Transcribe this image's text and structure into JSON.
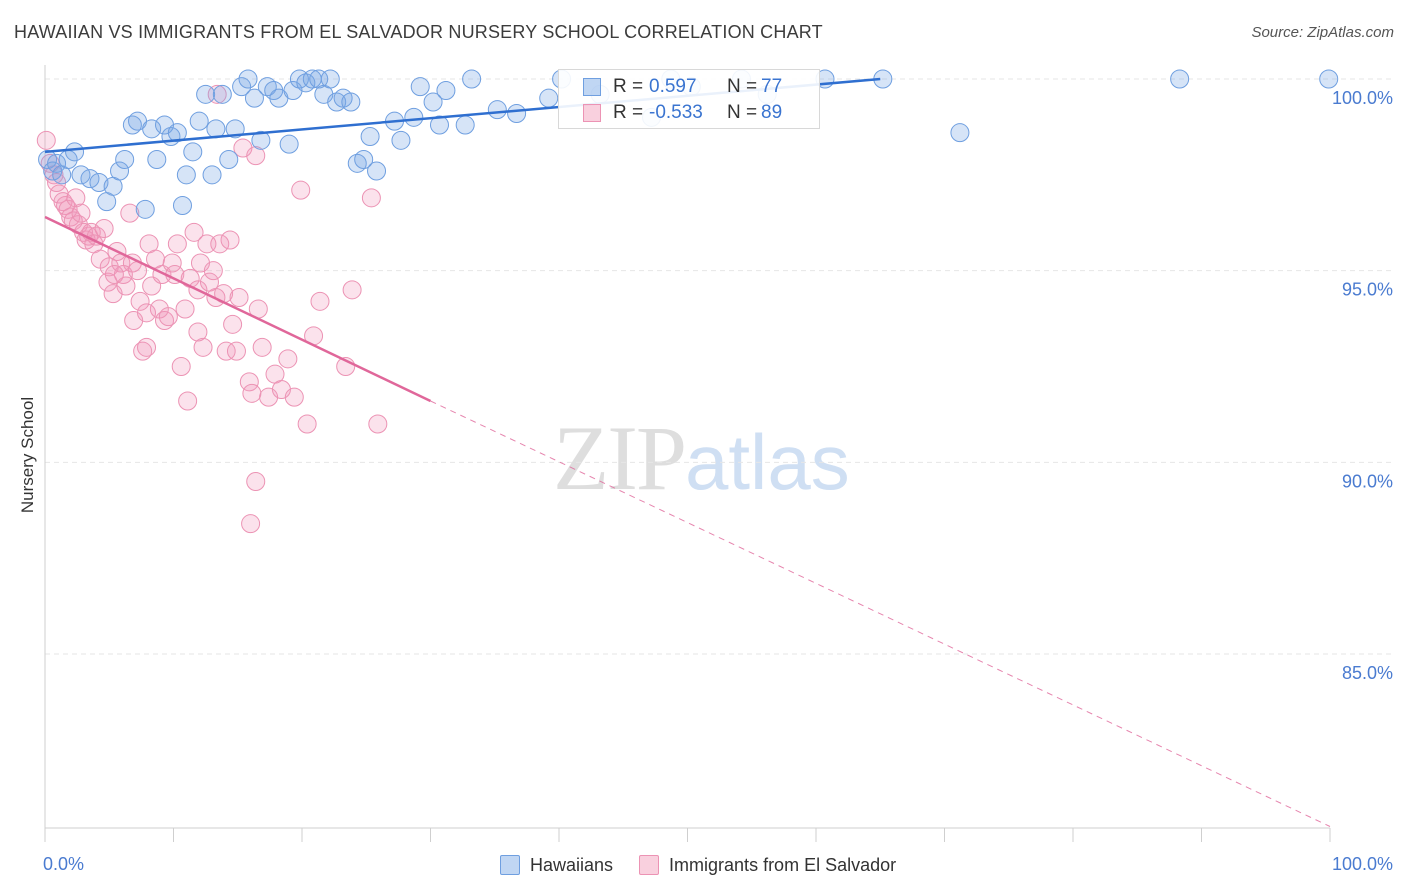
{
  "header": {
    "title": "HAWAIIAN VS IMMIGRANTS FROM EL SALVADOR NURSERY SCHOOL CORRELATION CHART",
    "source": "Source: ZipAtlas.com"
  },
  "watermark": {
    "zip": "ZIP",
    "atlas": "atlas"
  },
  "legend": {
    "rows": [
      {
        "r_label": "R =",
        "r_value": "0.597",
        "n_label": "N =",
        "n_value": "77",
        "color": "#8db4ea"
      },
      {
        "r_label": "R =",
        "r_value": "-0.533",
        "n_label": "N =",
        "n_value": "89",
        "color": "#f4a9c2"
      }
    ]
  },
  "bottom_legend": {
    "items": [
      {
        "label": "Hawaiians",
        "color": "#8db4ea"
      },
      {
        "label": "Immigrants from El Salvador",
        "color": "#f4a9c2"
      }
    ]
  },
  "colors": {
    "blue_fill": "rgba(120,165,230,0.30)",
    "blue_stroke": "#6f9fe0",
    "blue_line": "#2f6fd0",
    "pink_fill": "rgba(240,150,185,0.28)",
    "pink_stroke": "#ec93b4",
    "pink_line": "#e0679a",
    "grid": "#e6e6e6",
    "tick": "#4a7bd0"
  },
  "chart_data": {
    "type": "scatter",
    "title": "HAWAIIAN VS IMMIGRANTS FROM EL SALVADOR NURSERY SCHOOL CORRELATION CHART",
    "xlabel": "",
    "ylabel": "Nursery School",
    "xlim": [
      0,
      100
    ],
    "ylim": [
      80.5,
      100.3
    ],
    "y_ticks": [
      {
        "value": 85,
        "label": "85.0%"
      },
      {
        "value": 90,
        "label": "90.0%"
      },
      {
        "value": 95,
        "label": "95.0%"
      },
      {
        "value": 100,
        "label": "100.0%"
      }
    ],
    "x_tick_labels": [
      {
        "value": 0,
        "label": "0.0%"
      },
      {
        "value": 100,
        "label": "100.0%"
      }
    ],
    "x_minor_ticks": [
      0,
      10,
      20,
      30,
      40,
      50,
      60,
      70,
      80,
      90,
      100
    ],
    "grid": true,
    "legend_position": "top-center",
    "series": [
      {
        "name": "Hawaiians",
        "R": 0.597,
        "N": 77,
        "trend": {
          "x": [
            0,
            65
          ],
          "y": [
            98.1,
            100.0
          ],
          "style": "solid"
        },
        "points": [
          [
            0.2,
            97.9
          ],
          [
            0.6,
            97.6
          ],
          [
            0.9,
            97.8
          ],
          [
            1.3,
            97.5
          ],
          [
            1.8,
            97.9
          ],
          [
            2.3,
            98.1
          ],
          [
            2.8,
            97.5
          ],
          [
            3.5,
            97.4
          ],
          [
            4.2,
            97.3
          ],
          [
            4.8,
            96.8
          ],
          [
            5.3,
            97.2
          ],
          [
            5.8,
            97.6
          ],
          [
            6.2,
            97.9
          ],
          [
            6.8,
            98.8
          ],
          [
            7.2,
            98.9
          ],
          [
            7.8,
            96.6
          ],
          [
            8.3,
            98.7
          ],
          [
            8.7,
            97.9
          ],
          [
            9.3,
            98.8
          ],
          [
            9.8,
            98.5
          ],
          [
            10.3,
            98.6
          ],
          [
            10.7,
            96.7
          ],
          [
            11.0,
            97.5
          ],
          [
            11.5,
            98.1
          ],
          [
            12.0,
            98.9
          ],
          [
            12.5,
            99.6
          ],
          [
            13.0,
            97.5
          ],
          [
            13.3,
            98.7
          ],
          [
            13.8,
            99.6
          ],
          [
            14.3,
            97.9
          ],
          [
            14.8,
            98.7
          ],
          [
            15.3,
            99.8
          ],
          [
            15.8,
            100.0
          ],
          [
            16.3,
            99.5
          ],
          [
            16.8,
            98.4
          ],
          [
            17.3,
            99.8
          ],
          [
            17.8,
            99.7
          ],
          [
            18.2,
            99.5
          ],
          [
            19.0,
            98.3
          ],
          [
            19.3,
            99.7
          ],
          [
            19.8,
            100.0
          ],
          [
            20.3,
            99.9
          ],
          [
            20.8,
            100.0
          ],
          [
            21.3,
            100.0
          ],
          [
            21.7,
            99.6
          ],
          [
            22.2,
            100.0
          ],
          [
            22.7,
            99.4
          ],
          [
            23.2,
            99.5
          ],
          [
            23.8,
            99.4
          ],
          [
            24.3,
            97.8
          ],
          [
            24.8,
            97.9
          ],
          [
            25.3,
            98.5
          ],
          [
            25.8,
            97.6
          ],
          [
            27.2,
            98.9
          ],
          [
            27.7,
            98.4
          ],
          [
            28.7,
            99.0
          ],
          [
            29.2,
            99.8
          ],
          [
            30.2,
            99.4
          ],
          [
            30.7,
            98.8
          ],
          [
            31.2,
            99.7
          ],
          [
            32.7,
            98.8
          ],
          [
            33.2,
            100.0
          ],
          [
            35.2,
            99.2
          ],
          [
            36.7,
            99.1
          ],
          [
            39.2,
            99.5
          ],
          [
            40.2,
            100.0
          ],
          [
            43.2,
            99.6
          ],
          [
            47.2,
            99.0
          ],
          [
            48.7,
            100.0
          ],
          [
            50.3,
            99.8
          ],
          [
            54.2,
            100.0
          ],
          [
            56.2,
            99.6
          ],
          [
            60.7,
            100.0
          ],
          [
            65.2,
            100.0
          ],
          [
            71.2,
            98.6
          ],
          [
            88.3,
            100.0
          ],
          [
            99.9,
            100.0
          ]
        ]
      },
      {
        "name": "Immigrants from El Salvador",
        "R": -0.533,
        "N": 89,
        "trend": {
          "x": [
            0,
            30
          ],
          "y": [
            96.4,
            91.6
          ],
          "style": "solid",
          "extended_to": {
            "x": 100,
            "y": 80.5,
            "style": "dashed"
          }
        },
        "points": [
          [
            0.1,
            98.4
          ],
          [
            0.4,
            97.8
          ],
          [
            0.7,
            97.5
          ],
          [
            0.9,
            97.3
          ],
          [
            1.1,
            97.0
          ],
          [
            1.4,
            96.8
          ],
          [
            1.6,
            96.7
          ],
          [
            1.8,
            96.6
          ],
          [
            2.0,
            96.4
          ],
          [
            2.2,
            96.3
          ],
          [
            2.4,
            96.9
          ],
          [
            2.6,
            96.2
          ],
          [
            2.8,
            96.5
          ],
          [
            3.0,
            96.0
          ],
          [
            3.2,
            95.8
          ],
          [
            3.4,
            95.9
          ],
          [
            3.6,
            96.0
          ],
          [
            3.8,
            95.7
          ],
          [
            4.0,
            95.9
          ],
          [
            4.3,
            95.3
          ],
          [
            4.6,
            96.1
          ],
          [
            4.9,
            94.7
          ],
          [
            5.0,
            95.1
          ],
          [
            5.3,
            94.4
          ],
          [
            5.6,
            95.5
          ],
          [
            5.9,
            95.2
          ],
          [
            6.1,
            94.9
          ],
          [
            6.3,
            94.6
          ],
          [
            6.6,
            96.5
          ],
          [
            6.8,
            95.2
          ],
          [
            6.9,
            93.7
          ],
          [
            7.2,
            95.0
          ],
          [
            7.4,
            94.2
          ],
          [
            7.6,
            92.9
          ],
          [
            7.9,
            93.9
          ],
          [
            8.1,
            95.7
          ],
          [
            8.3,
            94.6
          ],
          [
            8.6,
            95.3
          ],
          [
            8.9,
            94.0
          ],
          [
            9.1,
            94.9
          ],
          [
            9.3,
            93.7
          ],
          [
            9.6,
            93.8
          ],
          [
            9.9,
            95.2
          ],
          [
            10.1,
            94.9
          ],
          [
            10.3,
            95.7
          ],
          [
            10.6,
            92.5
          ],
          [
            10.9,
            94.0
          ],
          [
            11.1,
            91.6
          ],
          [
            11.3,
            94.8
          ],
          [
            11.6,
            96.0
          ],
          [
            11.9,
            94.5
          ],
          [
            12.1,
            95.2
          ],
          [
            12.3,
            93.0
          ],
          [
            12.6,
            95.7
          ],
          [
            12.8,
            94.7
          ],
          [
            13.1,
            95.0
          ],
          [
            13.3,
            94.3
          ],
          [
            13.6,
            95.7
          ],
          [
            13.9,
            94.4
          ],
          [
            14.1,
            92.9
          ],
          [
            14.4,
            95.8
          ],
          [
            14.6,
            93.6
          ],
          [
            14.9,
            92.9
          ],
          [
            15.1,
            94.3
          ],
          [
            15.4,
            98.2
          ],
          [
            15.9,
            92.1
          ],
          [
            16.1,
            91.8
          ],
          [
            16.4,
            98.0
          ],
          [
            16.6,
            94.0
          ],
          [
            16.9,
            93.0
          ],
          [
            17.4,
            91.7
          ],
          [
            17.9,
            92.3
          ],
          [
            18.4,
            91.9
          ],
          [
            18.9,
            92.7
          ],
          [
            19.4,
            91.7
          ],
          [
            19.9,
            97.1
          ],
          [
            20.4,
            91.0
          ],
          [
            20.9,
            93.3
          ],
          [
            21.4,
            94.2
          ],
          [
            23.4,
            92.5
          ],
          [
            23.9,
            94.5
          ],
          [
            25.4,
            96.9
          ],
          [
            25.9,
            91.0
          ],
          [
            13.4,
            99.6
          ],
          [
            16.4,
            89.5
          ],
          [
            16.0,
            88.4
          ],
          [
            11.9,
            93.4
          ],
          [
            7.9,
            93.0
          ],
          [
            5.4,
            94.9
          ]
        ]
      }
    ]
  }
}
